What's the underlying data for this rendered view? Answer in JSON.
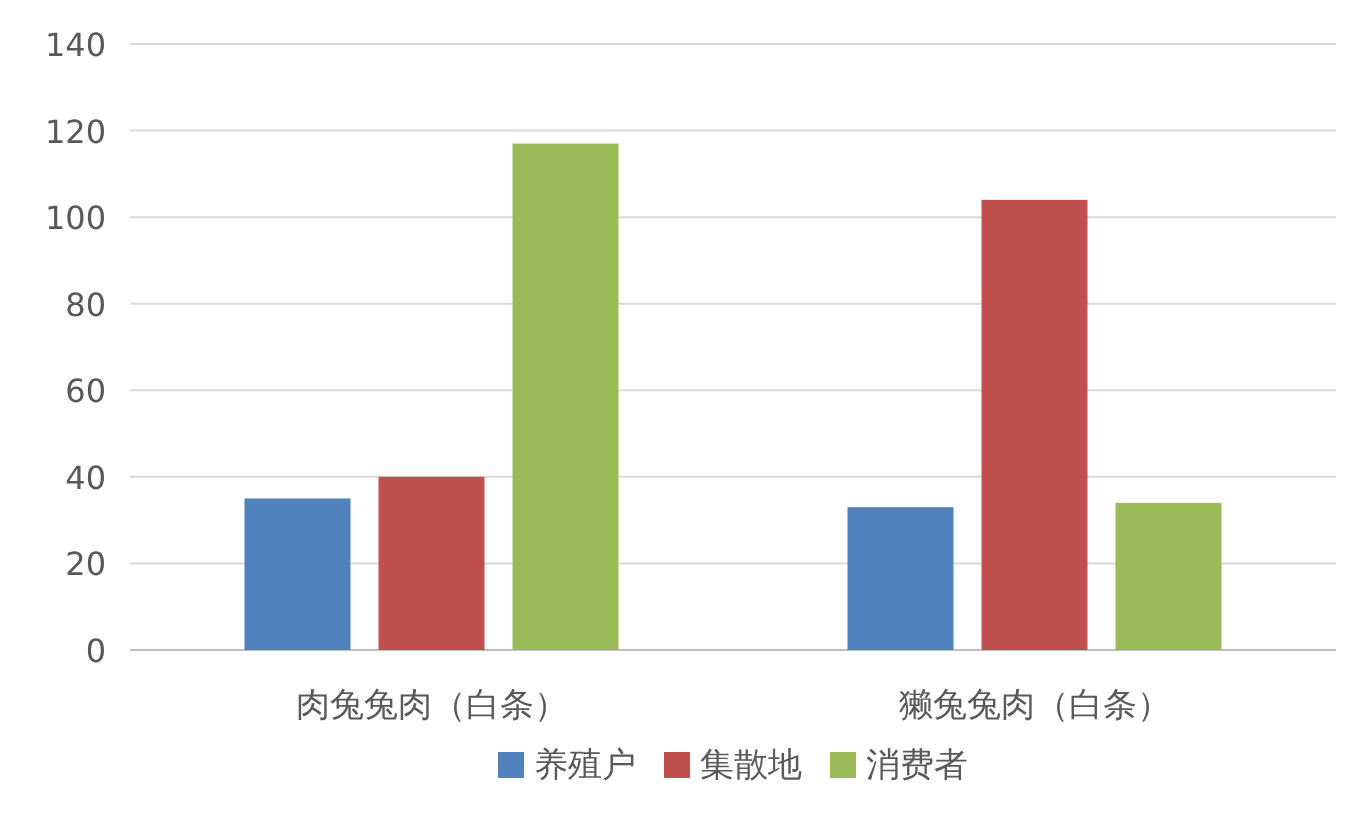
{
  "chart_data": {
    "type": "bar",
    "categories": [
      "肉兔兔肉（白条）",
      "獭兔兔肉（白条）"
    ],
    "series": [
      {
        "name": "养殖户",
        "color": "#4f81bd",
        "values": [
          35,
          33
        ]
      },
      {
        "name": "集散地",
        "color": "#c0504d",
        "values": [
          40,
          104
        ]
      },
      {
        "name": "消费者",
        "color": "#9bbb59",
        "values": [
          117,
          34
        ]
      }
    ],
    "ylim": [
      0,
      140
    ],
    "yticks": [
      0,
      20,
      40,
      60,
      80,
      100,
      120,
      140
    ],
    "grid": "y",
    "legend": "bottom"
  }
}
